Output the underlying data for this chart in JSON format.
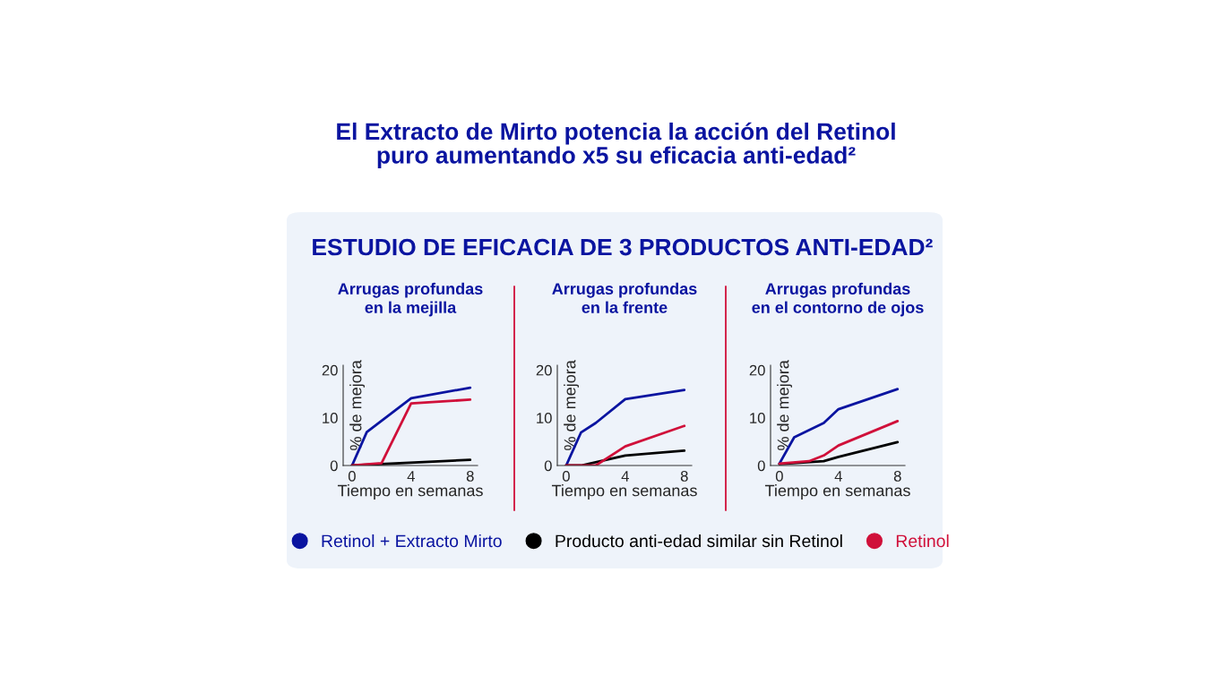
{
  "chart_data": [
    {
      "type": "line",
      "title": "Arrugas profundas\nen la mejilla",
      "xlabel": "Tiempo en semanas",
      "ylabel": "% de mejora",
      "xlim": [
        -0.6,
        8.5
      ],
      "ylim": [
        0,
        21
      ],
      "xticks": [
        0,
        4,
        8
      ],
      "yticks": [
        0,
        10,
        20
      ],
      "grid": false,
      "marker": "none",
      "line_style": "solid",
      "legend": "bottom",
      "annotations": [
        "El Extracto de Mirto potencia la acción del Retinol\npuro aumentando x5 su eficacia anti-edad²",
        "ESTUDIO DE EFICACIA DE 3 PRODUCTOS ANTI-EDAD²"
      ],
      "series": [
        {
          "name": "Retinol + Extracto Mirto",
          "color": "#0a14a0",
          "x": [
            0,
            1,
            4,
            8
          ],
          "values": [
            0,
            7.0,
            14.1,
            16.3
          ]
        },
        {
          "name": "Producto anti-edad similar sin Retinol",
          "color": "#000000",
          "x": [
            0,
            8
          ],
          "values": [
            0,
            1.2
          ]
        },
        {
          "name": "Retinol",
          "color": "#d0103a",
          "x": [
            0,
            2,
            4,
            8
          ],
          "values": [
            0,
            0.5,
            13.0,
            13.8
          ]
        }
      ]
    },
    {
      "type": "line",
      "title": "Arrugas profundas\nen la frente",
      "xlabel": "Tiempo en semanas",
      "ylabel": "% de mejora",
      "xlim": [
        -0.6,
        8.5
      ],
      "ylim": [
        0,
        21
      ],
      "xticks": [
        0,
        4,
        8
      ],
      "yticks": [
        0,
        10,
        20
      ],
      "grid": false,
      "marker": "none",
      "line_style": "solid",
      "series": [
        {
          "color": "#0a14a0",
          "x": [
            0,
            1,
            2,
            4,
            8
          ],
          "values": [
            0,
            6.9,
            8.9,
            13.9,
            15.8
          ]
        },
        {
          "color": "#000000",
          "x": [
            0,
            1,
            4,
            8
          ],
          "values": [
            0,
            0,
            2.1,
            3.1
          ]
        },
        {
          "color": "#d0103a",
          "x": [
            0,
            1,
            2,
            4,
            8
          ],
          "values": [
            0,
            0,
            0,
            4.0,
            8.3
          ]
        }
      ]
    },
    {
      "type": "line",
      "title": "Arrugas profundas\nen el contorno de ojos",
      "xlabel": "Tiempo en semanas",
      "ylabel": "% de mejora",
      "xlim": [
        -0.6,
        8.5
      ],
      "ylim": [
        0,
        21
      ],
      "xticks": [
        0,
        4,
        8
      ],
      "yticks": [
        0,
        10,
        20
      ],
      "grid": false,
      "marker": "none",
      "line_style": "solid",
      "series": [
        {
          "color": "#0a14a0",
          "x": [
            0,
            1,
            3,
            4,
            8
          ],
          "values": [
            0.4,
            5.9,
            8.9,
            11.8,
            16.0
          ]
        },
        {
          "color": "#000000",
          "x": [
            0,
            3,
            4,
            8
          ],
          "values": [
            0.3,
            0.9,
            1.8,
            4.9
          ]
        },
        {
          "color": "#d0103a",
          "x": [
            0,
            2,
            3,
            4,
            8
          ],
          "values": [
            0.4,
            0.9,
            2.1,
            4.2,
            9.3
          ]
        }
      ]
    }
  ]
}
